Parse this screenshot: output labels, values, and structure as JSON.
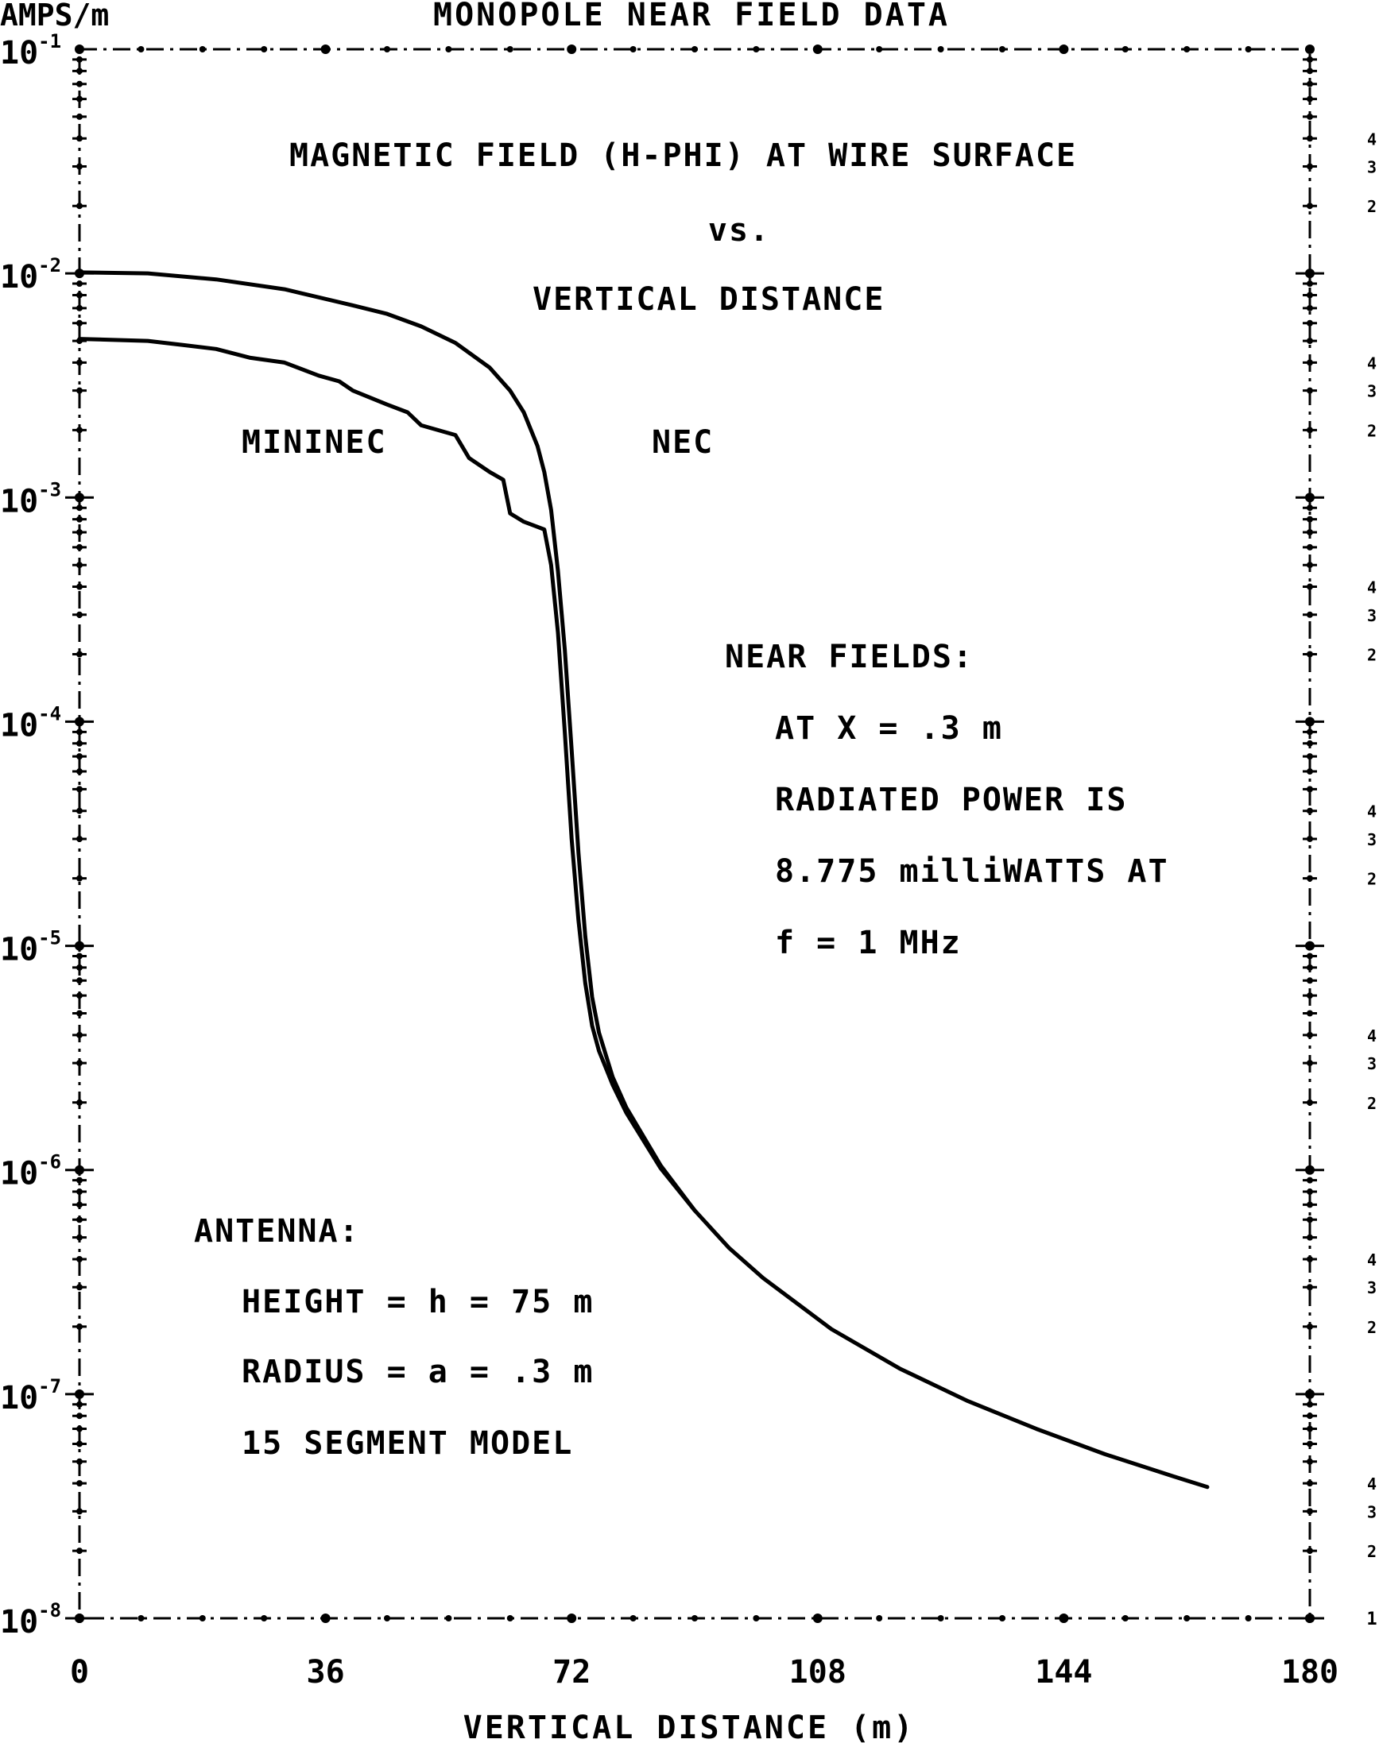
{
  "chart_data": {
    "type": "line",
    "title": "MONOPOLE NEAR FIELD DATA",
    "y_unit_label": "AMPS/m",
    "xlabel": "VERTICAL DISTANCE (m)",
    "ylabel": "",
    "x_scale": "linear",
    "y_scale": "log",
    "xlim": [
      0,
      180
    ],
    "ylim": [
      1e-08,
      0.1
    ],
    "x_ticks": [
      0,
      36,
      72,
      108,
      144,
      180
    ],
    "x_tick_labels": [
      "0",
      "36",
      "72",
      "108",
      "144",
      "180"
    ],
    "y_ticks": [
      0.1,
      0.01,
      0.001,
      0.0001,
      1e-05,
      1e-06,
      1e-07,
      1e-08
    ],
    "y_tick_labels": [
      {
        "base": "10",
        "exp": "-1"
      },
      {
        "base": "10",
        "exp": "-2"
      },
      {
        "base": "10",
        "exp": "-3"
      },
      {
        "base": "10",
        "exp": "-4"
      },
      {
        "base": "10",
        "exp": "-5"
      },
      {
        "base": "10",
        "exp": "-6"
      },
      {
        "base": "10",
        "exp": "-7"
      },
      {
        "base": "10",
        "exp": "-8"
      }
    ],
    "right_minor_labels": [
      "4",
      "3",
      "2"
    ],
    "bottom_right_label": "1",
    "grid": false,
    "series": [
      {
        "name": "NEC",
        "x": [
          0,
          10,
          20,
          30,
          40,
          45,
          50,
          55,
          60,
          63,
          65,
          67,
          68,
          69,
          70,
          71,
          72,
          73,
          74,
          75,
          76,
          78,
          80,
          85,
          90,
          95,
          100,
          110,
          120,
          130,
          140,
          150,
          160,
          165
        ],
        "y": [
          0.0101,
          0.01,
          0.0094,
          0.0085,
          0.0072,
          0.0066,
          0.0058,
          0.0049,
          0.0038,
          0.003,
          0.0024,
          0.0017,
          0.0013,
          0.00088,
          0.00047,
          0.00021,
          7.5e-05,
          2.6e-05,
          1.1e-05,
          5.9e-06,
          4.1e-06,
          2.6e-06,
          1.9e-06,
          1.05e-06,
          6.6e-07,
          4.5e-07,
          3.3e-07,
          1.95e-07,
          1.3e-07,
          9.3e-08,
          7e-08,
          5.4e-08,
          4.3e-08,
          3.85e-08
        ]
      },
      {
        "name": "MININEC",
        "x": [
          0,
          10,
          15,
          20,
          25,
          30,
          35,
          38,
          40,
          45,
          48,
          50,
          55,
          57,
          60,
          62,
          63,
          65,
          67,
          68,
          69,
          70,
          71,
          72,
          73,
          74,
          75,
          76,
          78,
          80,
          85,
          90
        ],
        "y": [
          0.0051,
          0.005,
          0.0048,
          0.0046,
          0.0042,
          0.004,
          0.0035,
          0.0033,
          0.003,
          0.0026,
          0.0024,
          0.0021,
          0.0019,
          0.0015,
          0.0013,
          0.0012,
          0.00085,
          0.00078,
          0.00074,
          0.00072,
          0.0005,
          0.00025,
          9e-05,
          3e-05,
          1.3e-05,
          6.8e-06,
          4.4e-06,
          3.4e-06,
          2.4e-06,
          1.8e-06,
          1.02e-06,
          6.6e-07
        ]
      }
    ],
    "annotations": {
      "heading_line1": "MAGNETIC FIELD (H-PHI) AT WIRE SURFACE",
      "heading_line2": "vs.",
      "heading_line3": "VERTICAL DISTANCE",
      "near_fields": [
        "NEAR FIELDS:",
        "AT X = .3 m",
        "RADIATED POWER IS",
        "8.775 milliWATTS AT",
        "f = 1 MHz"
      ],
      "antenna": [
        "ANTENNA:",
        "HEIGHT = h = 75 m",
        "RADIUS = a = .3 m",
        "15 SEGMENT MODEL"
      ]
    }
  }
}
